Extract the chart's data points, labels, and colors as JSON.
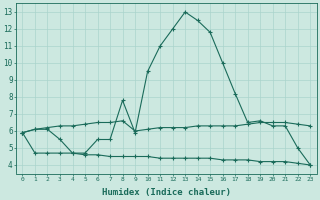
{
  "xlabel": "Humidex (Indice chaleur)",
  "bg_color": "#cce8e0",
  "grid_color": "#aad4cc",
  "line_color": "#1a6b5a",
  "x": [
    0,
    1,
    2,
    3,
    4,
    5,
    6,
    7,
    8,
    9,
    10,
    11,
    12,
    13,
    14,
    15,
    16,
    17,
    18,
    19,
    20,
    21,
    22,
    23
  ],
  "y_top": [
    5.9,
    6.1,
    6.1,
    5.5,
    4.7,
    4.7,
    5.5,
    5.5,
    7.8,
    5.9,
    9.5,
    11.0,
    12.0,
    13.0,
    12.5,
    11.8,
    10.0,
    8.2,
    6.5,
    6.6,
    6.3,
    6.3,
    5.0,
    4.0
  ],
  "y_mid": [
    5.9,
    6.1,
    6.2,
    6.3,
    6.3,
    6.4,
    6.5,
    6.5,
    6.6,
    6.0,
    6.1,
    6.2,
    6.2,
    6.2,
    6.3,
    6.3,
    6.3,
    6.3,
    6.4,
    6.5,
    6.5,
    6.5,
    6.4,
    6.3
  ],
  "y_bot": [
    5.9,
    4.7,
    4.7,
    4.7,
    4.7,
    4.6,
    4.6,
    4.5,
    4.5,
    4.5,
    4.5,
    4.4,
    4.4,
    4.4,
    4.4,
    4.4,
    4.3,
    4.3,
    4.3,
    4.2,
    4.2,
    4.2,
    4.1,
    4.0
  ],
  "ylim": [
    3.5,
    13.5
  ],
  "xlim": [
    -0.5,
    23.5
  ],
  "yticks": [
    4,
    5,
    6,
    7,
    8,
    9,
    10,
    11,
    12,
    13
  ],
  "xticks": [
    0,
    1,
    2,
    3,
    4,
    5,
    6,
    7,
    8,
    9,
    10,
    11,
    12,
    13,
    14,
    15,
    16,
    17,
    18,
    19,
    20,
    21,
    22,
    23
  ]
}
